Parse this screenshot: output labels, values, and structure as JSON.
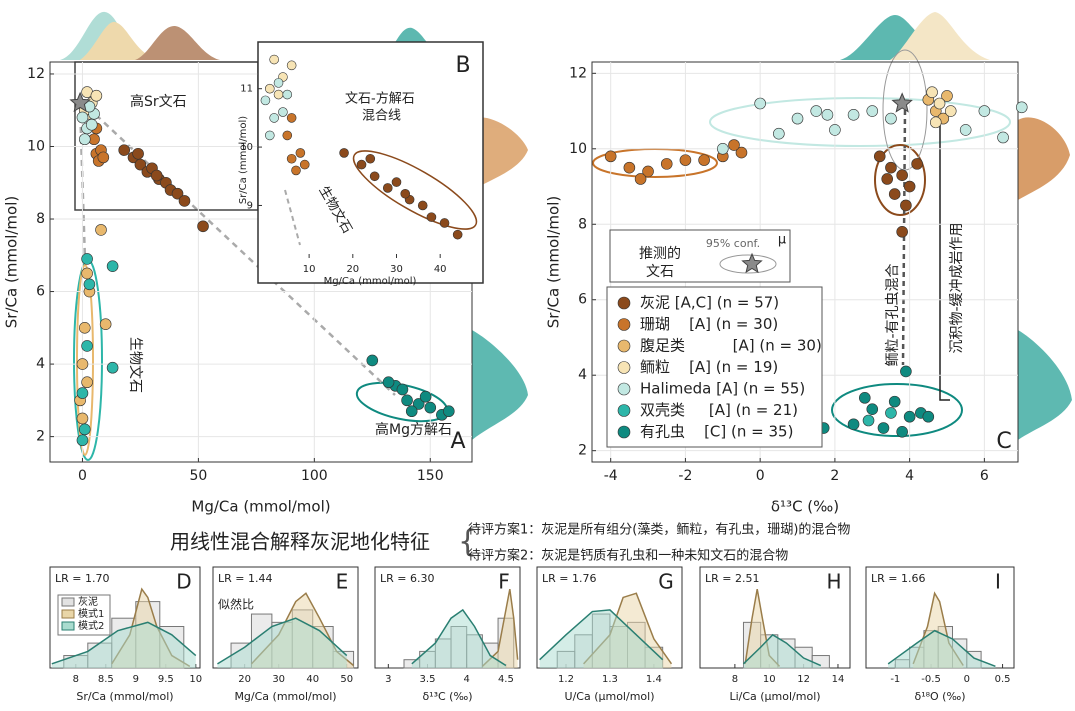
{
  "heading": "用线性混合解释灰泥地化特征",
  "options": [
    "待评方案1：灰泥是所有组分(藻类，鲕粒，有孔虫，珊瑚)的混合物",
    "待评方案2：灰泥是钙质有孔虫和一种未知文石的混合物"
  ],
  "chart_data": [
    {
      "type": "scatter",
      "label": "A",
      "xlabel": "Mg/Ca (mmol/mol)",
      "ylabel": "Sr/Ca (mmol/mol)",
      "xlim": [
        -14,
        168
      ],
      "ylim": [
        1.3,
        12.33
      ],
      "xticks": [
        0,
        50,
        100,
        150
      ],
      "yticks": [
        2,
        4,
        6,
        8,
        10,
        12
      ],
      "grid": true,
      "annotations": [
        "高Sr文石",
        "生物文石",
        "高Mg方解石"
      ],
      "star": {
        "x": -1,
        "y": 11.2
      },
      "series": [
        {
          "color": "#8b4a1c",
          "x": [
            18,
            22,
            25,
            28,
            30,
            33,
            36,
            38,
            41,
            44,
            24,
            32,
            52
          ],
          "y": [
            9.9,
            9.7,
            9.5,
            9.3,
            9.4,
            9.1,
            9.0,
            8.8,
            8.7,
            8.5,
            9.8,
            9.2,
            7.8
          ]
        },
        {
          "color": "#c8742a",
          "x": [
            5,
            6,
            7,
            8,
            6,
            9
          ],
          "y": [
            10.2,
            9.8,
            9.6,
            9.9,
            10.5,
            9.7
          ]
        },
        {
          "color": "#e8b86d",
          "x": [
            0,
            1,
            2,
            3,
            -1,
            8,
            10,
            0,
            2
          ],
          "y": [
            4,
            5,
            3.5,
            6,
            3,
            7.7,
            5.1,
            2.5,
            6.5
          ]
        },
        {
          "color": "#f7e4b5",
          "x": [
            2,
            4,
            3,
            6,
            1
          ],
          "y": [
            11.5,
            11.2,
            10.9,
            11.4,
            11.0
          ]
        },
        {
          "color": "#c2e8e2",
          "x": [
            0,
            2,
            4,
            1,
            5,
            3
          ],
          "y": [
            10.8,
            10.5,
            10.6,
            10.2,
            10.9,
            11.1
          ]
        },
        {
          "color": "#2db6a9",
          "x": [
            2,
            3,
            0,
            1,
            2,
            13,
            13,
            0
          ],
          "y": [
            6.9,
            6.2,
            3.2,
            2.2,
            4.5,
            6.7,
            3.9,
            1.9
          ]
        },
        {
          "color": "#0f8a80",
          "x": [
            125,
            135,
            140,
            145,
            150,
            155,
            138,
            148,
            142,
            158,
            132
          ],
          "y": [
            4.1,
            3.4,
            3.0,
            2.9,
            2.8,
            2.6,
            3.3,
            3.1,
            2.7,
            2.7,
            3.5
          ]
        }
      ],
      "inset": {
        "label": "B",
        "xlabel": "Mg/Ca (mmol/mol)",
        "ylabel": "Sr/Ca (mmol/mol)",
        "xlim": [
          -1.7,
          49.8
        ],
        "ylim": [
          8.1,
          11.8
        ],
        "xticks": [
          10,
          20,
          30,
          40
        ],
        "yticks": [
          9,
          10,
          11
        ],
        "annotations": [
          "文石-方解石",
          "混合线",
          "生物文石"
        ]
      }
    },
    {
      "type": "scatter",
      "label": "C",
      "xlabel": "δ¹³C (‰)",
      "ylabel": "Sr/Ca (mmol/mol)",
      "xlim": [
        -4.5,
        6.9
      ],
      "ylim": [
        1.7,
        12.3
      ],
      "xticks": [
        -4,
        -2,
        0,
        2,
        4,
        6
      ],
      "yticks": [
        2,
        4,
        6,
        8,
        10,
        12
      ],
      "grid": true,
      "annotations": [
        "鲕粒-有孔虫混合",
        "沉积物-缓冲成岩作用"
      ],
      "star": {
        "x": 3.8,
        "y": 11.2
      },
      "key": {
        "title": [
          "推测的",
          "文石"
        ],
        "conf": "95% conf.",
        "mu": "μ"
      },
      "series": [
        {
          "name": "灰泥 [A,C] (n = 57)",
          "color": "#8b4a1c",
          "x": [
            3.2,
            3.5,
            3.8,
            4.0,
            3.6,
            3.9,
            4.2,
            3.4,
            3.8
          ],
          "y": [
            9.8,
            9.5,
            9.3,
            9.0,
            8.8,
            8.5,
            9.6,
            9.2,
            7.8
          ]
        },
        {
          "name": "珊瑚    [A] (n = 30)",
          "color": "#c8742a",
          "x": [
            -4,
            -3.5,
            -3,
            -2.5,
            -2,
            -1.5,
            -1,
            -0.5,
            -3.2,
            -0.7
          ],
          "y": [
            9.8,
            9.5,
            9.4,
            9.6,
            9.7,
            9.7,
            9.8,
            9.9,
            9.2,
            10.1
          ]
        },
        {
          "name": "腹足类          [A] (n = 30)",
          "color": "#e8b86d",
          "x": [
            4.5,
            4.7,
            5.0,
            4.9
          ],
          "y": [
            11.3,
            11.0,
            11.4,
            10.8
          ]
        },
        {
          "name": "鲕粒    [A] (n = 19)",
          "color": "#f7e4b5",
          "x": [
            4.6,
            4.8,
            5.1,
            4.7
          ],
          "y": [
            11.5,
            11.2,
            11.0,
            10.7
          ]
        },
        {
          "name": "Halimeda [A] (n = 55)",
          "color": "#c2e8e2",
          "x": [
            0,
            0.5,
            1,
            1.5,
            2,
            2.5,
            3,
            3.5,
            5.5,
            6,
            6.5,
            7,
            -1,
            1.8
          ],
          "y": [
            11.2,
            10.4,
            10.8,
            11.0,
            10.5,
            10.9,
            11.0,
            10.8,
            10.5,
            11.0,
            10.3,
            11.1,
            10.0,
            10.9
          ]
        },
        {
          "name": "双壳类     [A] (n = 21)",
          "color": "#2db6a9",
          "x": [
            2.9,
            3.5
          ],
          "y": [
            2.8,
            3.0
          ]
        },
        {
          "name": "有孔虫    [C] (n = 35)",
          "color": "#0f8a80",
          "x": [
            2.5,
            3,
            3.3,
            3.6,
            4,
            4.3,
            3.8,
            4.5,
            2.8,
            3.9,
            1.7
          ],
          "y": [
            2.7,
            3.1,
            2.6,
            3.3,
            2.9,
            3.0,
            2.5,
            2.9,
            3.4,
            4.1,
            2.6
          ]
        }
      ]
    },
    {
      "type": "histogram",
      "label": "D",
      "lr": "LR = 1.70",
      "xlabel": "Sr/Ca (mmol/mol)",
      "legend": [
        "灰泥",
        "模式1",
        "模式2"
      ],
      "xlim": [
        7.57,
        10.07
      ],
      "xticks": [
        8,
        8.5,
        9,
        9.5,
        10
      ],
      "ylim": [
        0,
        1
      ],
      "bins": [
        7.8,
        8.2,
        8.6,
        9.0,
        9.4,
        9.8
      ],
      "counts": [
        0.15,
        0.3,
        0.6,
        0.8,
        0.5
      ],
      "model1": {
        "x": [
          8.6,
          8.9,
          9.1,
          9.2,
          9.35,
          9.6,
          9.9
        ],
        "y": [
          0.05,
          0.4,
          0.95,
          0.85,
          0.5,
          0.15,
          0.02
        ]
      },
      "model2": {
        "x": [
          7.6,
          8.2,
          8.7,
          9.2,
          9.6,
          10.0
        ],
        "y": [
          0.05,
          0.2,
          0.45,
          0.55,
          0.4,
          0.15
        ]
      }
    },
    {
      "type": "histogram",
      "label": "E",
      "lr": "LR = 1.44",
      "note": "似然比",
      "xlabel": "Mg/Ca (mmol/mol)",
      "xlim": [
        10.7,
        53.3
      ],
      "xticks": [
        20,
        30,
        40,
        50
      ],
      "ylim": [
        0,
        1
      ],
      "bins": [
        16,
        22,
        28,
        34,
        40,
        46,
        52
      ],
      "counts": [
        0.3,
        0.65,
        0.55,
        0.7,
        0.5,
        0.2
      ],
      "model1": {
        "x": [
          22,
          30,
          35,
          38,
          42,
          47,
          52
        ],
        "y": [
          0.05,
          0.4,
          0.8,
          0.9,
          0.6,
          0.2,
          0.03
        ]
      },
      "model2": {
        "x": [
          12,
          20,
          28,
          35,
          42,
          50
        ],
        "y": [
          0.05,
          0.25,
          0.5,
          0.6,
          0.45,
          0.15
        ]
      }
    },
    {
      "type": "histogram",
      "label": "F",
      "lr": "LR = 6.30",
      "xlabel": "δ¹³C (‰)",
      "xlim": [
        2.83,
        4.68
      ],
      "xticks": [
        3,
        3.5,
        4,
        4.5
      ],
      "ylim": [
        0,
        1
      ],
      "bins": [
        3.2,
        3.4,
        3.6,
        3.8,
        4.0,
        4.2,
        4.4,
        4.6
      ],
      "counts": [
        0.1,
        0.2,
        0.35,
        0.5,
        0.4,
        0.3,
        0.6
      ],
      "model1": {
        "x": [
          4.2,
          4.4,
          4.5,
          4.55,
          4.6,
          4.65
        ],
        "y": [
          0.02,
          0.2,
          0.7,
          0.95,
          0.6,
          0.1
        ]
      },
      "model2": {
        "x": [
          3.3,
          3.6,
          3.8,
          3.95,
          4.1,
          4.3,
          4.5
        ],
        "y": [
          0.05,
          0.3,
          0.6,
          0.7,
          0.5,
          0.15,
          0.03
        ]
      }
    },
    {
      "type": "histogram",
      "label": "G",
      "lr": "LR = 1.76",
      "xlabel": "U/Ca (μmol/mol)",
      "xlim": [
        1.134,
        1.464
      ],
      "xticks": [
        1.2,
        1.3,
        1.4
      ],
      "ylim": [
        0,
        1
      ],
      "bins": [
        1.18,
        1.22,
        1.26,
        1.3,
        1.34,
        1.38,
        1.42
      ],
      "counts": [
        0.2,
        0.4,
        0.65,
        0.5,
        0.55,
        0.25
      ],
      "model1": {
        "x": [
          1.24,
          1.3,
          1.33,
          1.36,
          1.4,
          1.44
        ],
        "y": [
          0.05,
          0.4,
          0.85,
          0.9,
          0.35,
          0.05
        ]
      },
      "model2": {
        "x": [
          1.14,
          1.2,
          1.26,
          1.3,
          1.36,
          1.42
        ],
        "y": [
          0.1,
          0.4,
          0.68,
          0.7,
          0.4,
          0.1
        ]
      }
    },
    {
      "type": "histogram",
      "label": "H",
      "lr": "LR = 2.51",
      "xlabel": "Li/Ca (μmol/mol)",
      "xlim": [
        5.97,
        14.7
      ],
      "xticks": [
        8,
        10,
        12,
        14
      ],
      "ylim": [
        0,
        1
      ],
      "bins": [
        8.5,
        9.5,
        10.5,
        11.5,
        12.5,
        13.5
      ],
      "counts": [
        0.55,
        0.4,
        0.35,
        0.25,
        0.15
      ],
      "model1": {
        "x": [
          8.6,
          9.0,
          9.3,
          9.6,
          10.0,
          10.6
        ],
        "y": [
          0.05,
          0.6,
          0.95,
          0.6,
          0.15,
          0.02
        ]
      },
      "model2": {
        "x": [
          8.5,
          9.5,
          10.2,
          11,
          12,
          13
        ],
        "y": [
          0.05,
          0.25,
          0.4,
          0.3,
          0.12,
          0.03
        ]
      }
    },
    {
      "type": "histogram",
      "label": "I",
      "lr": "LR = 1.66",
      "xlabel": "δ¹⁸O (‰)",
      "xlim": [
        -1.41,
        0.66
      ],
      "xticks": [
        -1,
        -0.5,
        0,
        0.5
      ],
      "ylim": [
        0,
        1
      ],
      "bins": [
        -1.0,
        -0.8,
        -0.6,
        -0.4,
        -0.2,
        0,
        0.2
      ],
      "counts": [
        0.1,
        0.25,
        0.45,
        0.5,
        0.35,
        0.2
      ],
      "model1": {
        "x": [
          -0.75,
          -0.55,
          -0.45,
          -0.38,
          -0.25,
          -0.05
        ],
        "y": [
          0.05,
          0.5,
          0.9,
          0.8,
          0.3,
          0.03
        ]
      },
      "model2": {
        "x": [
          -1.1,
          -0.7,
          -0.45,
          -0.2,
          0.1,
          0.4
        ],
        "y": [
          0.05,
          0.3,
          0.45,
          0.35,
          0.12,
          0.02
        ]
      }
    }
  ]
}
